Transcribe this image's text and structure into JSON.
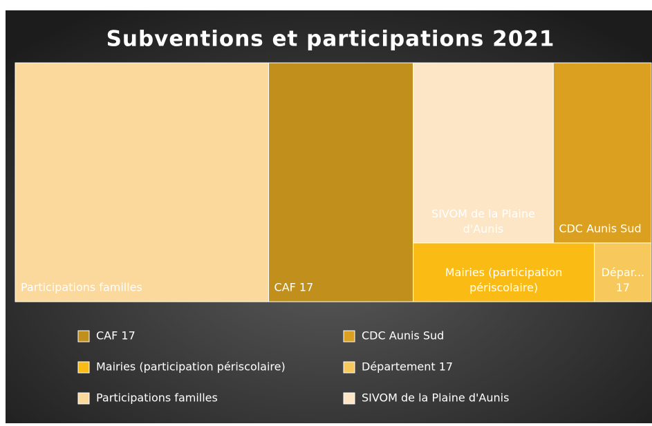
{
  "chart_data": {
    "type": "treemap",
    "title": "Subventions et participations 2021",
    "series": [
      {
        "name": "CAF 17",
        "color": "#c08f1c",
        "values": [
          22.7
        ]
      },
      {
        "name": "CDC Aunis Sud",
        "color": "#dca021",
        "values": [
          11.6
        ]
      },
      {
        "name": "Mairies (participation périscolaire)",
        "color": "#f9bb14",
        "values": [
          7.0
        ]
      },
      {
        "name": "Département 17",
        "color": "#f7c95c",
        "values": [
          2.2
        ]
      },
      {
        "name": "Participations familles",
        "color": "#fbd89c",
        "values": [
          39.8
        ]
      },
      {
        "name": "SIVOM de la Plaine d'Aunis",
        "color": "#fde6c6",
        "values": [
          16.6
        ]
      }
    ]
  }
}
